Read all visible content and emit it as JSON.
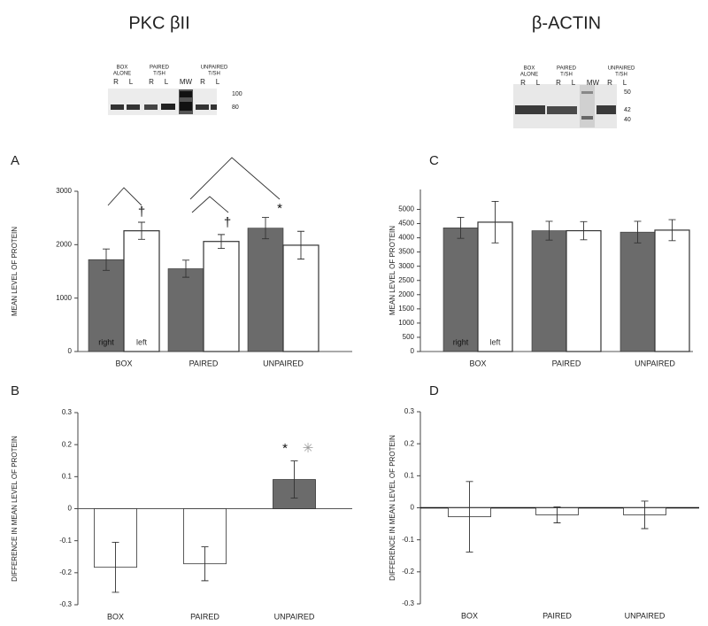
{
  "headings": [
    "PKC βII",
    "β-ACTIN"
  ],
  "blots": [
    {
      "lane_labels": [
        "BOX",
        "ALONE",
        "R",
        "L",
        "PAIRED",
        "T/SH",
        "R",
        "L",
        "MW",
        "UNPAIRED",
        "T/SH",
        "R",
        "L"
      ],
      "markers": [
        100,
        80
      ]
    },
    {
      "lane_labels": [
        "BOX",
        "ALONE",
        "R",
        "L",
        "PAIRED",
        "T/SH",
        "R",
        "L",
        "MW",
        "UNPAIRED",
        "T/SH",
        "R",
        "L"
      ],
      "markers": [
        50,
        42,
        40
      ]
    }
  ],
  "chart_data": [
    {
      "type": "bar",
      "panel": "A",
      "ylabel": "MEAN LEVEL OF PROTEIN",
      "categories": [
        "BOX",
        "PAIRED",
        "UNPAIRED"
      ],
      "series": [
        {
          "name": "right",
          "color": "#6b6b6b",
          "values": [
            1720,
            1550,
            2310
          ],
          "errors": [
            200,
            160,
            200
          ]
        },
        {
          "name": "left",
          "color": "#ffffff",
          "values": [
            2260,
            2060,
            1990
          ],
          "errors": [
            160,
            130,
            260
          ]
        }
      ],
      "ylim": [
        0,
        3000
      ],
      "yticks": [
        0,
        1000,
        2000,
        3000
      ],
      "annotations": [
        "†",
        "†",
        "*"
      ]
    },
    {
      "type": "bar",
      "panel": "C",
      "ylabel": "MEAN LEVEL OF PROTEIN",
      "categories": [
        "BOX",
        "PAIRED",
        "UNPAIRED"
      ],
      "series": [
        {
          "name": "right",
          "color": "#6b6b6b",
          "values": [
            4350,
            4250,
            4200
          ],
          "errors": [
            370,
            330,
            380
          ]
        },
        {
          "name": "left",
          "color": "#ffffff",
          "values": [
            4550,
            4250,
            4270
          ],
          "errors": [
            730,
            320,
            370
          ]
        }
      ],
      "ylim": [
        0,
        5700
      ],
      "yticks": [
        0,
        500,
        1000,
        1500,
        2000,
        2500,
        3000,
        3500,
        4000,
        4500,
        5000
      ]
    },
    {
      "type": "bar",
      "panel": "B",
      "ylabel": "DIFFERENCE IN MEAN LEVEL OF PROTEIN",
      "categories": [
        "BOX",
        "PAIRED",
        "UNPAIRED"
      ],
      "values": [
        -0.183,
        -0.172,
        0.091
      ],
      "errors": [
        0.078,
        0.053,
        0.058
      ],
      "colors": [
        "#ffffff",
        "#ffffff",
        "#6b6b6b"
      ],
      "ylim": [
        -0.3,
        0.3
      ],
      "yticks": [
        -0.3,
        -0.2,
        -0.1,
        0,
        0.1,
        0.2,
        0.3
      ],
      "annotations": [
        "*",
        "✳"
      ]
    },
    {
      "type": "bar",
      "panel": "D",
      "ylabel": "DIFFERENCE IN MEAN LEVEL OF PROTEIN",
      "categories": [
        "BOX",
        "PAIRED",
        "UNPAIRED"
      ],
      "values": [
        -0.028,
        -0.022,
        -0.022
      ],
      "errors": [
        0.11,
        0.025,
        0.043
      ],
      "colors": [
        "#ffffff",
        "#ffffff",
        "#ffffff"
      ],
      "ylim": [
        -0.3,
        0.3
      ],
      "yticks": [
        -0.3,
        -0.2,
        -0.1,
        0,
        0.1,
        0.2,
        0.3
      ]
    }
  ]
}
